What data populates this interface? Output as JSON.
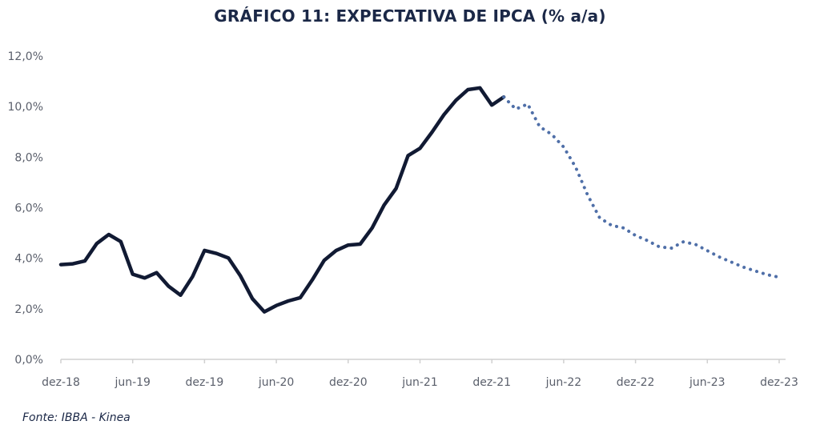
{
  "source": "Fonte: IBBA - Kinea",
  "chart_data": {
    "type": "line",
    "title": "GRÁFICO 11: EXPECTATIVA DE IPCA (% a/a)",
    "xlabel": "",
    "ylabel": "",
    "ylim": [
      0,
      12
    ],
    "yticks": [
      "0,0%",
      "2,0%",
      "4,0%",
      "6,0%",
      "8,0%",
      "10,0%",
      "12,0%"
    ],
    "xticks": [
      "dez-18",
      "jun-19",
      "dez-19",
      "jun-20",
      "dez-20",
      "jun-21",
      "dez-21",
      "jun-22",
      "dez-22",
      "jun-23",
      "dez-23"
    ],
    "grid": false,
    "colors": {
      "realized": "#111a33",
      "projection": "#4f6fa8",
      "axis": "#d0d0d0"
    },
    "series": [
      {
        "style": "solid",
        "x": [
          "dez-18",
          "jan-19",
          "fev-19",
          "mar-19",
          "abr-19",
          "mai-19",
          "jun-19",
          "jul-19",
          "ago-19",
          "set-19",
          "out-19",
          "nov-19",
          "dez-19",
          "jan-20",
          "fev-20",
          "mar-20",
          "abr-20",
          "mai-20",
          "jun-20",
          "jul-20",
          "ago-20",
          "set-20",
          "out-20",
          "nov-20",
          "dez-20",
          "jan-21",
          "fev-21",
          "mar-21",
          "abr-21",
          "mai-21",
          "jun-21",
          "jul-21",
          "ago-21",
          "set-21",
          "out-21",
          "nov-21",
          "dez-21",
          "jan-22"
        ],
        "values": [
          3.75,
          3.78,
          3.89,
          4.58,
          4.94,
          4.66,
          3.37,
          3.22,
          3.43,
          2.89,
          2.54,
          3.27,
          4.31,
          4.19,
          4.01,
          3.3,
          2.4,
          1.88,
          2.13,
          2.31,
          2.44,
          3.14,
          3.92,
          4.31,
          4.52,
          4.56,
          5.2,
          6.1,
          6.76,
          8.06,
          8.35,
          8.99,
          9.68,
          10.25,
          10.67,
          10.74,
          10.06,
          10.38
        ]
      },
      {
        "style": "dotted",
        "x": [
          "jan-22",
          "fev-22",
          "mar-22",
          "abr-22",
          "mai-22",
          "jun-22",
          "jul-22",
          "ago-22",
          "set-22",
          "out-22",
          "nov-22",
          "dez-22",
          "jan-23",
          "fev-23",
          "mar-23",
          "abr-23",
          "mai-23",
          "jun-23",
          "jul-23",
          "ago-23",
          "set-23",
          "out-23",
          "nov-23",
          "dez-23"
        ],
        "values": [
          10.38,
          9.9,
          10.1,
          9.2,
          8.9,
          8.4,
          7.6,
          6.5,
          5.6,
          5.3,
          5.2,
          4.9,
          4.7,
          4.45,
          4.4,
          4.65,
          4.55,
          4.3,
          4.05,
          3.85,
          3.65,
          3.5,
          3.35,
          3.25
        ]
      }
    ]
  }
}
